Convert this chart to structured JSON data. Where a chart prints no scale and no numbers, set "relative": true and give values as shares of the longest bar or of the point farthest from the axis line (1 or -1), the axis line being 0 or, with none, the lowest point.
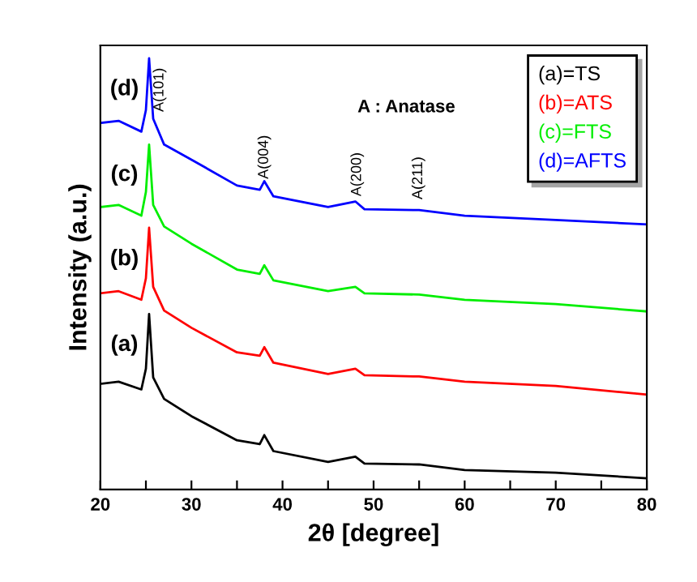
{
  "chart_data": {
    "type": "line",
    "relative": true,
    "xlabel": "2θ [degree]",
    "ylabel": "Intensity (a.u.)",
    "x": [
      20,
      22,
      24.5,
      25.0,
      25.35,
      25.8,
      27,
      30,
      35,
      37.5,
      38,
      39,
      45,
      48,
      49,
      55,
      60,
      70,
      80
    ],
    "xlim": [
      20,
      80
    ],
    "xticks": [
      20,
      {
        "value": 25,
        "label": null
      },
      30,
      {
        "value": 35,
        "label": null
      },
      40,
      {
        "value": 45,
        "label": null
      },
      50,
      {
        "value": 55,
        "label": null
      },
      60,
      {
        "value": 65,
        "label": null
      },
      70,
      {
        "value": 75,
        "label": null
      },
      80
    ],
    "tick_labels": "x",
    "grid": false,
    "legend": "top right",
    "marker": "none",
    "line_style": "solid",
    "series": [
      {
        "name": "(a)=TS",
        "color": "#000000",
        "values": [
          0.245,
          0.25,
          0.232,
          0.28,
          0.407,
          0.26,
          0.21,
          0.17,
          0.114,
          0.105,
          0.126,
          0.089,
          0.064,
          0.076,
          0.06,
          0.058,
          0.045,
          0.039,
          0.026
        ]
      },
      {
        "name": "(b)=ATS",
        "color": "#ff0000",
        "values": [
          0.455,
          0.46,
          0.44,
          0.49,
          0.607,
          0.47,
          0.415,
          0.375,
          0.318,
          0.31,
          0.33,
          0.294,
          0.268,
          0.28,
          0.265,
          0.262,
          0.25,
          0.24,
          0.22
        ]
      },
      {
        "name": "(c)=FTS",
        "color": "#00ee00",
        "values": [
          0.655,
          0.66,
          0.635,
          0.69,
          0.8,
          0.66,
          0.61,
          0.57,
          0.51,
          0.5,
          0.52,
          0.485,
          0.46,
          0.47,
          0.455,
          0.452,
          0.44,
          0.43,
          0.413
        ]
      },
      {
        "name": "(d)=AFTS",
        "color": "#0000ff",
        "values": [
          0.85,
          0.855,
          0.83,
          0.88,
          1.0,
          0.86,
          0.8,
          0.765,
          0.705,
          0.695,
          0.715,
          0.68,
          0.655,
          0.668,
          0.65,
          0.648,
          0.635,
          0.625,
          0.615
        ]
      }
    ],
    "annotations": [
      {
        "text": "A(101)",
        "x": 26.5,
        "y": 0.876
      },
      {
        "text": "A(004)",
        "x": 38,
        "y": 0.72
      },
      {
        "text": "A(200)",
        "x": 48.2,
        "y": 0.68
      },
      "A(211)",
      "(a)",
      "(b)",
      "(c)",
      "(d)",
      "A : Anatase"
    ]
  }
}
